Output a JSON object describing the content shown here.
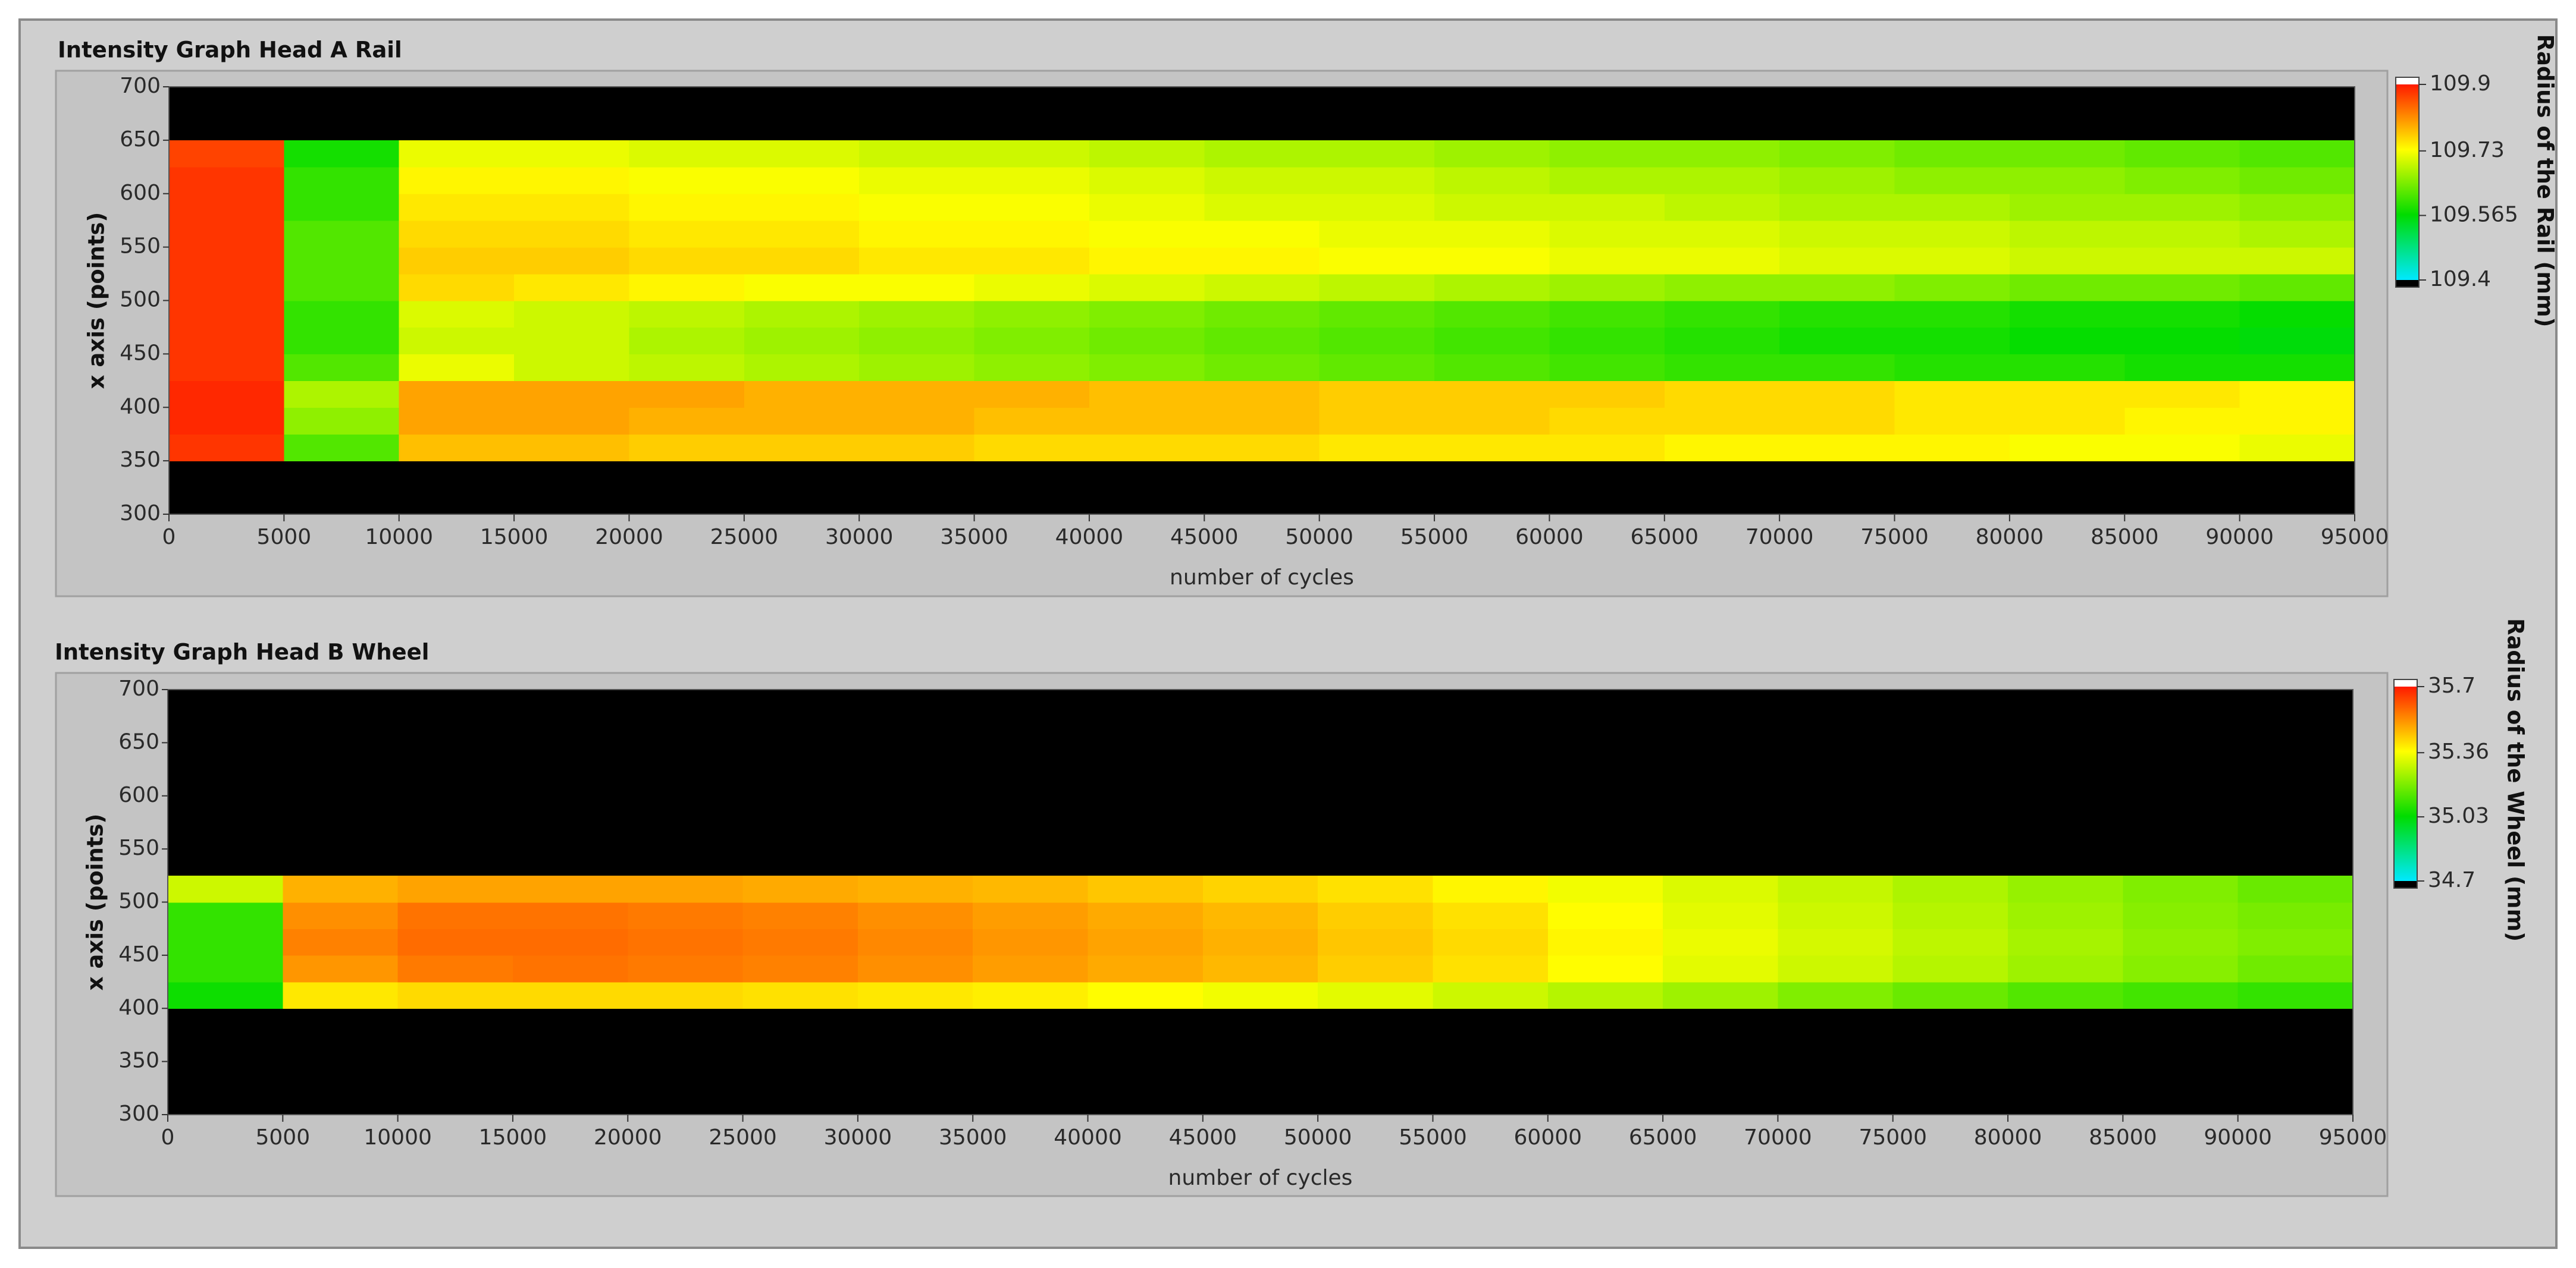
{
  "chart_data": [
    {
      "type": "heatmap",
      "title": "Intensity Graph Head A Rail",
      "xlabel": "number of cycles",
      "ylabel": "x axis (points)",
      "zlabel": "Radius of the Rail (mm)",
      "xlim": [
        0,
        95000
      ],
      "ylim": [
        300,
        700
      ],
      "zlim": [
        109.4,
        109.9
      ],
      "xticks": [
        0,
        5000,
        10000,
        15000,
        20000,
        25000,
        30000,
        35000,
        40000,
        45000,
        50000,
        55000,
        60000,
        65000,
        70000,
        75000,
        80000,
        85000,
        90000,
        95000
      ],
      "yticks": [
        300,
        350,
        400,
        450,
        500,
        550,
        600,
        650,
        700
      ],
      "zticks": [
        109.4,
        109.565,
        109.73,
        109.9
      ],
      "colors": [
        "#00e8ff",
        "#00dc00",
        "#ffff00",
        "#ff1a00"
      ],
      "below_color": "#000000",
      "above_color": "#ffffff",
      "x_bins": [
        0,
        5000,
        10000,
        15000,
        20000,
        25000,
        30000,
        35000,
        40000,
        45000,
        50000,
        55000,
        60000,
        65000,
        70000,
        75000,
        80000,
        85000,
        90000,
        95000
      ],
      "y_bins": [
        300,
        325,
        350,
        375,
        400,
        425,
        450,
        475,
        500,
        525,
        550,
        575,
        600,
        625,
        650,
        675,
        700
      ],
      "z": [
        [
          null,
          null,
          null,
          null,
          null,
          null,
          null,
          null,
          null,
          null,
          null,
          null,
          null,
          null,
          null,
          null,
          null,
          null,
          null
        ],
        [
          null,
          null,
          null,
          null,
          null,
          null,
          null,
          null,
          null,
          null,
          null,
          null,
          null,
          null,
          null,
          null,
          null,
          null,
          null
        ],
        [
          109.88,
          109.62,
          109.78,
          109.78,
          109.77,
          109.77,
          109.77,
          109.76,
          109.76,
          109.76,
          109.75,
          109.75,
          109.75,
          109.74,
          109.74,
          109.74,
          109.73,
          109.73,
          109.72
        ],
        [
          109.89,
          109.66,
          109.8,
          109.8,
          109.79,
          109.79,
          109.79,
          109.78,
          109.78,
          109.78,
          109.77,
          109.77,
          109.76,
          109.76,
          109.76,
          109.75,
          109.75,
          109.74,
          109.74
        ],
        [
          109.89,
          109.68,
          109.8,
          109.8,
          109.8,
          109.79,
          109.79,
          109.79,
          109.78,
          109.78,
          109.77,
          109.77,
          109.77,
          109.76,
          109.76,
          109.75,
          109.75,
          109.75,
          109.74
        ],
        [
          109.88,
          109.62,
          109.72,
          109.7,
          109.69,
          109.68,
          109.67,
          109.66,
          109.65,
          109.64,
          109.63,
          109.62,
          109.61,
          109.6,
          109.6,
          109.59,
          109.59,
          109.58,
          109.58
        ],
        [
          109.88,
          109.6,
          109.7,
          109.7,
          109.68,
          109.67,
          109.66,
          109.65,
          109.64,
          109.63,
          109.62,
          109.61,
          109.6,
          109.59,
          109.58,
          109.58,
          109.57,
          109.57,
          109.56
        ],
        [
          109.88,
          109.6,
          109.71,
          109.7,
          109.69,
          109.68,
          109.67,
          109.66,
          109.65,
          109.64,
          109.63,
          109.62,
          109.61,
          109.6,
          109.59,
          109.59,
          109.58,
          109.58,
          109.57
        ],
        [
          109.88,
          109.62,
          109.76,
          109.75,
          109.74,
          109.73,
          109.73,
          109.72,
          109.71,
          109.7,
          109.69,
          109.68,
          109.67,
          109.66,
          109.66,
          109.65,
          109.64,
          109.64,
          109.63
        ],
        [
          109.88,
          109.62,
          109.77,
          109.77,
          109.76,
          109.76,
          109.75,
          109.75,
          109.74,
          109.74,
          109.73,
          109.73,
          109.72,
          109.72,
          109.71,
          109.71,
          109.7,
          109.7,
          109.7
        ],
        [
          109.88,
          109.62,
          109.76,
          109.76,
          109.75,
          109.75,
          109.74,
          109.74,
          109.73,
          109.73,
          109.72,
          109.72,
          109.71,
          109.71,
          109.7,
          109.7,
          109.69,
          109.69,
          109.68
        ],
        [
          109.88,
          109.6,
          109.75,
          109.75,
          109.74,
          109.74,
          109.73,
          109.73,
          109.72,
          109.71,
          109.71,
          109.7,
          109.7,
          109.69,
          109.68,
          109.68,
          109.67,
          109.67,
          109.66
        ],
        [
          109.88,
          109.6,
          109.74,
          109.74,
          109.73,
          109.73,
          109.72,
          109.72,
          109.71,
          109.7,
          109.7,
          109.69,
          109.68,
          109.68,
          109.67,
          109.66,
          109.66,
          109.65,
          109.64
        ],
        [
          109.87,
          109.58,
          109.72,
          109.72,
          109.71,
          109.71,
          109.7,
          109.7,
          109.69,
          109.68,
          109.68,
          109.67,
          109.66,
          109.66,
          109.65,
          109.64,
          109.64,
          109.63,
          109.62
        ],
        [
          null,
          null,
          null,
          null,
          null,
          null,
          null,
          null,
          null,
          null,
          null,
          null,
          null,
          null,
          null,
          null,
          null,
          null,
          null
        ],
        [
          null,
          null,
          null,
          null,
          null,
          null,
          null,
          null,
          null,
          null,
          null,
          null,
          null,
          null,
          null,
          null,
          null,
          null,
          null
        ]
      ]
    },
    {
      "type": "heatmap",
      "title": "Intensity Graph Head B Wheel",
      "xlabel": "number of cycles",
      "ylabel": "x axis (points)",
      "zlabel": "Radius of the Wheel (mm)",
      "xlim": [
        0,
        95000
      ],
      "ylim": [
        300,
        700
      ],
      "zlim": [
        34.7,
        35.7
      ],
      "xticks": [
        0,
        5000,
        10000,
        15000,
        20000,
        25000,
        30000,
        35000,
        40000,
        45000,
        50000,
        55000,
        60000,
        65000,
        70000,
        75000,
        80000,
        85000,
        90000,
        95000
      ],
      "yticks": [
        300,
        350,
        400,
        450,
        500,
        550,
        600,
        650,
        700
      ],
      "zticks": [
        34.7,
        35.03,
        35.36,
        35.7
      ],
      "colors": [
        "#00e8ff",
        "#00dc00",
        "#ffff00",
        "#ff1a00"
      ],
      "below_color": "#000000",
      "above_color": "#ffffff",
      "x_bins": [
        0,
        5000,
        10000,
        15000,
        20000,
        25000,
        30000,
        35000,
        40000,
        45000,
        50000,
        55000,
        60000,
        65000,
        70000,
        75000,
        80000,
        85000,
        90000,
        95000
      ],
      "y_bins": [
        300,
        325,
        350,
        375,
        400,
        425,
        450,
        475,
        500,
        525,
        550,
        575,
        600,
        625,
        650,
        675,
        700
      ],
      "z": [
        [
          null,
          null,
          null,
          null,
          null,
          null,
          null,
          null,
          null,
          null,
          null,
          null,
          null,
          null,
          null,
          null,
          null,
          null,
          null
        ],
        [
          null,
          null,
          null,
          null,
          null,
          null,
          null,
          null,
          null,
          null,
          null,
          null,
          null,
          null,
          null,
          null,
          null,
          null,
          null
        ],
        [
          null,
          null,
          null,
          null,
          null,
          null,
          null,
          null,
          null,
          null,
          null,
          null,
          null,
          null,
          null,
          null,
          null,
          null,
          null
        ],
        [
          null,
          null,
          null,
          null,
          null,
          null,
          null,
          null,
          null,
          null,
          null,
          null,
          null,
          null,
          null,
          null,
          null,
          null,
          null
        ],
        [
          35.05,
          35.4,
          35.42,
          35.42,
          35.42,
          35.41,
          35.4,
          35.39,
          35.37,
          35.35,
          35.33,
          35.3,
          35.27,
          35.24,
          35.2,
          35.17,
          35.14,
          35.12,
          35.1
        ],
        [
          35.1,
          35.52,
          35.56,
          35.57,
          35.56,
          35.55,
          35.53,
          35.51,
          35.49,
          35.47,
          35.44,
          35.41,
          35.37,
          35.33,
          35.3,
          35.27,
          35.24,
          35.21,
          35.18
        ],
        [
          35.1,
          35.55,
          35.58,
          35.58,
          35.57,
          35.56,
          35.54,
          35.52,
          35.5,
          35.48,
          35.45,
          35.42,
          35.38,
          35.34,
          35.31,
          35.28,
          35.25,
          35.22,
          35.2
        ],
        [
          35.1,
          35.53,
          35.57,
          35.57,
          35.56,
          35.55,
          35.53,
          35.51,
          35.49,
          35.47,
          35.44,
          35.41,
          35.37,
          35.33,
          35.3,
          35.27,
          35.24,
          35.21,
          35.19
        ],
        [
          35.3,
          35.48,
          35.5,
          35.5,
          35.5,
          35.49,
          35.48,
          35.47,
          35.45,
          35.43,
          35.41,
          35.38,
          35.35,
          35.32,
          35.29,
          35.26,
          35.23,
          35.2,
          35.17
        ],
        [
          null,
          null,
          null,
          null,
          null,
          null,
          null,
          null,
          null,
          null,
          null,
          null,
          null,
          null,
          null,
          null,
          null,
          null,
          null
        ],
        [
          null,
          null,
          null,
          null,
          null,
          null,
          null,
          null,
          null,
          null,
          null,
          null,
          null,
          null,
          null,
          null,
          null,
          null,
          null
        ],
        [
          null,
          null,
          null,
          null,
          null,
          null,
          null,
          null,
          null,
          null,
          null,
          null,
          null,
          null,
          null,
          null,
          null,
          null,
          null
        ],
        [
          null,
          null,
          null,
          null,
          null,
          null,
          null,
          null,
          null,
          null,
          null,
          null,
          null,
          null,
          null,
          null,
          null,
          null,
          null
        ],
        [
          null,
          null,
          null,
          null,
          null,
          null,
          null,
          null,
          null,
          null,
          null,
          null,
          null,
          null,
          null,
          null,
          null,
          null,
          null
        ],
        [
          null,
          null,
          null,
          null,
          null,
          null,
          null,
          null,
          null,
          null,
          null,
          null,
          null,
          null,
          null,
          null,
          null,
          null,
          null
        ],
        [
          null,
          null,
          null,
          null,
          null,
          null,
          null,
          null,
          null,
          null,
          null,
          null,
          null,
          null,
          null,
          null,
          null,
          null,
          null
        ]
      ]
    }
  ]
}
